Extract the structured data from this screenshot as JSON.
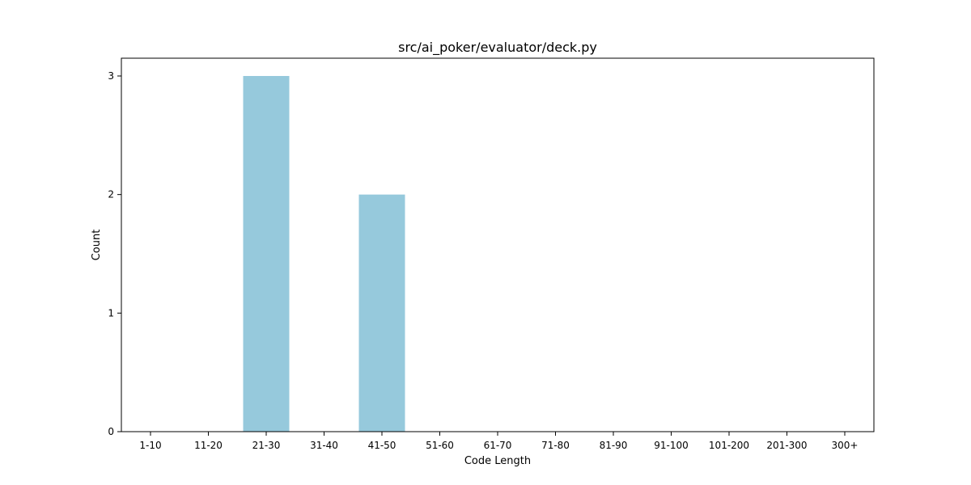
{
  "chart_data": {
    "type": "bar",
    "title": "src/ai_poker/evaluator/deck.py",
    "xlabel": "Code Length",
    "ylabel": "Count",
    "categories": [
      "1-10",
      "11-20",
      "21-30",
      "31-40",
      "41-50",
      "51-60",
      "61-70",
      "71-80",
      "81-90",
      "91-100",
      "101-200",
      "201-300",
      "300+"
    ],
    "values": [
      0,
      0,
      3,
      0,
      2,
      0,
      0,
      0,
      0,
      0,
      0,
      0,
      0
    ],
    "ylim": [
      0,
      3.15
    ],
    "yticks": [
      0,
      1,
      2,
      3
    ],
    "grid": false,
    "legend": "none",
    "bar_color": "#96c9dc"
  }
}
